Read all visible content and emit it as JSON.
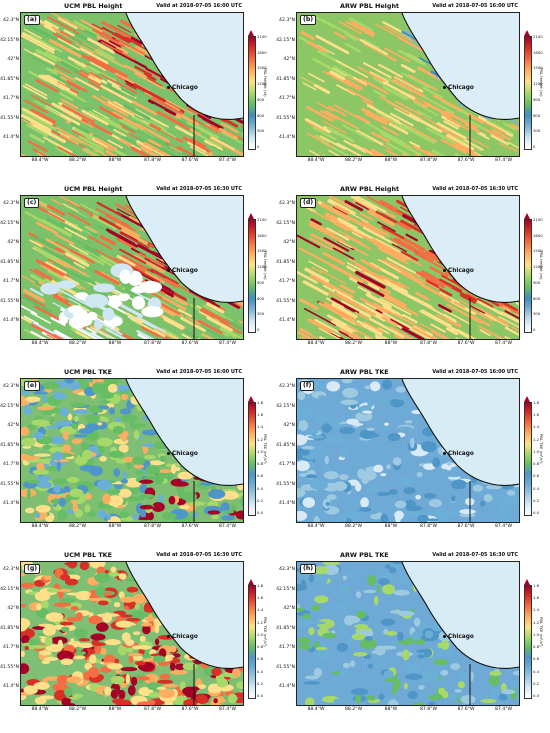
{
  "ticks": {
    "lat_height": [
      "42.3°N",
      "42.15°N",
      "42°N",
      "41.85°N",
      "41.7°N",
      "41.55°N",
      "41.4°N"
    ],
    "lat_height_b": [
      "42.3°N",
      "42.15°N",
      "42°N",
      "41.85°N",
      "41.7°N",
      "41.55°N",
      "41.4°N"
    ],
    "lon": [
      "88.4°W",
      "88.2°W",
      "88°W",
      "87.8°W",
      "87.6°W",
      "87.4°W"
    ],
    "lon_a": [
      "88.4°W",
      "88.2°W",
      "88°W",
      "87.8°W",
      "87.6°W",
      "87.4°W"
    ]
  },
  "height_cbar": {
    "a": [
      "2100",
      "1800",
      "1500",
      "1200",
      "900",
      "600",
      "300",
      "0"
    ],
    "b": [
      "2100",
      "1800",
      "1500",
      "1200",
      "900",
      "600",
      "300",
      "0"
    ],
    "c": [
      "2100",
      "1800",
      "1500",
      "1200",
      "900",
      "600",
      "300",
      "0"
    ],
    "d": [
      "2100",
      "1800",
      "1500",
      "1200",
      "900",
      "600",
      "300",
      "0"
    ],
    "label": "PBL Height (m)"
  },
  "tke_cbar": {
    "values": [
      "1.8",
      "1.6",
      "1.4",
      "1.2",
      "1.0",
      "0.8",
      "0.6",
      "0.4",
      "0.2",
      "0.0"
    ],
    "label": "PBL TKE (m²/s²)"
  },
  "panels": [
    {
      "id": "a",
      "label": "(a)",
      "title": "UCM PBL Height",
      "valid": "Valid at 2018-07-05 16:00 UTC",
      "city": "Chicago",
      "var": "height",
      "model": "ucm"
    },
    {
      "id": "b",
      "label": "(b)",
      "title": "ARW PBL Height",
      "valid": "Valid at 2018-07-05 16:00 UTC",
      "city": "Chicago",
      "var": "height",
      "model": "arw"
    },
    {
      "id": "c",
      "label": "(c)",
      "title": "UCM PBL Height",
      "valid": "Valid at 2018-07-05 16:30 UTC",
      "city": "Chicago",
      "var": "height",
      "model": "ucm2"
    },
    {
      "id": "d",
      "label": "(d)",
      "title": "ARW PBL Height",
      "valid": "Valid at 2018-07-05 16:30 UTC",
      "city": "Chicago",
      "var": "height",
      "model": "arw2"
    },
    {
      "id": "e",
      "label": "(e)",
      "title": "UCM PBL TKE",
      "valid": "Valid at 2018-07-05 16:00 UTC",
      "city": "Chicago",
      "var": "tke",
      "model": "ucm"
    },
    {
      "id": "f",
      "label": "(f)",
      "title": "ARW PBL TKE",
      "valid": "Valid at 2018-07-05 16:00 UTC",
      "city": "Chicago",
      "var": "tke",
      "model": "arw"
    },
    {
      "id": "g",
      "label": "(g)",
      "title": "UCM PBL TKE",
      "valid": "Valid at 2018-07-05 16:30 UTC",
      "city": "Chicago",
      "var": "tke",
      "model": "ucm2"
    },
    {
      "id": "h",
      "label": "(h)",
      "title": "ARW PBL TKE",
      "valid": "Valid at 2018-07-05 16:30 UTC",
      "city": "Chicago",
      "var": "tke",
      "model": "arw2"
    }
  ],
  "colors": {
    "lake": "#dbeef8",
    "lake_tke": "#d8ecf6",
    "height_scale": [
      "#ffffff",
      "#cfe6f3",
      "#7fb4d6",
      "#3f8fbf",
      "#66bd63",
      "#a6d96a",
      "#fee08b",
      "#fdae61",
      "#f46d43",
      "#d73027",
      "#a50026"
    ],
    "tke_scale": [
      "#ffffff",
      "#d7eaf5",
      "#9ecae1",
      "#6baed6",
      "#4f96c8",
      "#66bd63",
      "#a6d96a",
      "#fee08b",
      "#fdae61",
      "#f46d43",
      "#d73027",
      "#a50026"
    ]
  }
}
